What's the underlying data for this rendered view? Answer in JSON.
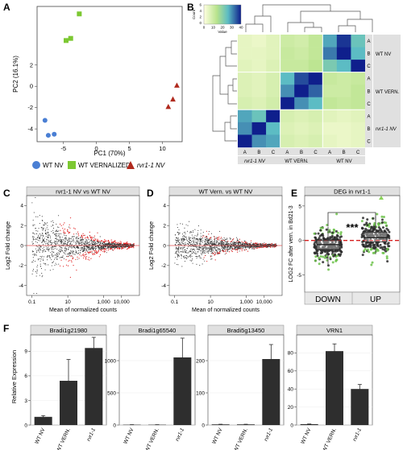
{
  "panels": {
    "A": {
      "label": "A",
      "ylabel": "PC2 (16.1%)",
      "xlabel": "PC1 (70%)",
      "xticks": [
        "-5",
        "0",
        "5",
        "10"
      ],
      "yticks": [
        "2",
        "0",
        "-2",
        "-4"
      ],
      "xlim": [
        -9,
        13
      ],
      "ylim": [
        -5.2,
        7.5
      ],
      "legend": [
        {
          "label": "WT NV",
          "shape": "circle",
          "color": "#4a7fd4"
        },
        {
          "label": "WT VERNALIZED",
          "shape": "square",
          "color": "#7cc832"
        },
        {
          "label": "rvr1-1 NV",
          "shape": "triangle",
          "color": "#b02a1e"
        }
      ]
    },
    "B": {
      "label": "B",
      "colorkey_title": "Count",
      "colorkey_ticks": [
        "0",
        "10",
        "20",
        "30",
        "40"
      ],
      "colorkey_xlabel": "Value",
      "colorkey_yticks": [
        "0",
        "2",
        "4",
        "6"
      ],
      "row_sample_labels": [
        "A",
        "B",
        "C",
        "A",
        "B",
        "C",
        "A",
        "B",
        "C"
      ],
      "row_group_labels": [
        "WT NV",
        "WT VERN.",
        "rvr1-1 NV"
      ],
      "col_sample_labels": [
        "A",
        "B",
        "C",
        "A",
        "B",
        "C",
        "A",
        "B",
        "C"
      ],
      "col_group_labels": [
        "rvr1-1 NV",
        "WT VERN.",
        "WT NV"
      ]
    },
    "C": {
      "label": "C",
      "title": "rvr1-1 NV vs WT NV",
      "ylabel": "Log2 Fold change",
      "xlabel": "Mean of normalized counts",
      "xticks": [
        "0.1",
        "10",
        "1,000",
        "10,000"
      ],
      "yticks": [
        "4",
        "2",
        "0",
        "-2",
        "-4"
      ]
    },
    "D": {
      "label": "D",
      "title": "WT Vern. vs WT NV",
      "ylabel": "Log2 Fold change",
      "xlabel": "Mean of normalized counts",
      "xticks": [
        "0.1",
        "10",
        "1,000",
        "10,000"
      ],
      "yticks": [
        "4",
        "2",
        "0",
        "-2",
        "-4"
      ]
    },
    "E": {
      "label": "E",
      "title": "DEG in rvr1-1",
      "ylabel": "LOG2 FC after vern. in Bd21-3",
      "categories": [
        "DOWN",
        "UP"
      ],
      "significance": "***",
      "yticks": [
        "5",
        "0",
        "-5"
      ]
    },
    "F": {
      "label": "F",
      "ylabel": "Relative Expression"
    }
  },
  "chart_data": [
    {
      "type": "scatter",
      "panel": "A",
      "xlabel": "PC1 (70%)",
      "ylabel": "PC2 (16.1%)",
      "xlim": [
        -9,
        13
      ],
      "ylim": [
        -5.2,
        7.5
      ],
      "series": [
        {
          "name": "WT NV",
          "points": [
            [
              -7.8,
              -3.2
            ],
            [
              -7.3,
              -4.6
            ],
            [
              -6.4,
              -4.5
            ]
          ]
        },
        {
          "name": "WT VERNALIZED",
          "points": [
            [
              -4.6,
              4.3
            ],
            [
              -3.9,
              4.5
            ],
            [
              -2.6,
              6.8
            ]
          ]
        },
        {
          "name": "rvr1-1 NV",
          "points": [
            [
              10.9,
              -1.9
            ],
            [
              11.6,
              -1.2
            ],
            [
              12.2,
              0.1
            ]
          ]
        }
      ]
    },
    {
      "type": "heatmap",
      "panel": "B",
      "rows": [
        "WT NV A",
        "WT NV B",
        "WT NV C",
        "WT VERN. A",
        "WT VERN. B",
        "WT VERN. C",
        "rvr1-1 NV A",
        "rvr1-1 NV B",
        "rvr1-1 NV C"
      ],
      "columns": [
        "rvr1-1 NV A",
        "rvr1-1 NV B",
        "rvr1-1 NV C",
        "WT VERN. A",
        "WT VERN. B",
        "WT VERN. C",
        "WT NV A",
        "WT NV B",
        "WT NV C"
      ],
      "values": [
        [
          5,
          4,
          6,
          10,
          9,
          12,
          28,
          38,
          24
        ],
        [
          5,
          5,
          6,
          11,
          10,
          12,
          32,
          40,
          26
        ],
        [
          6,
          5,
          7,
          11,
          11,
          13,
          22,
          26,
          40
        ],
        [
          7,
          6,
          8,
          26,
          36,
          40,
          11,
          10,
          11
        ],
        [
          7,
          6,
          8,
          30,
          40,
          34,
          10,
          10,
          12
        ],
        [
          8,
          7,
          9,
          40,
          30,
          26,
          12,
          11,
          12
        ],
        [
          28,
          24,
          40,
          8,
          7,
          8,
          6,
          5,
          6
        ],
        [
          30,
          40,
          26,
          7,
          6,
          7,
          4,
          4,
          5
        ],
        [
          40,
          30,
          28,
          8,
          7,
          8,
          5,
          4,
          5
        ]
      ],
      "value_range": [
        0,
        40
      ]
    },
    {
      "type": "scatter",
      "panel": "C",
      "title": "rvr1-1 NV vs WT NV",
      "xscale": "log",
      "xlim": [
        0.05,
        100000
      ],
      "ylim": [
        -5,
        5
      ],
      "description_series": [
        "not significant (black)",
        "significant (red)"
      ],
      "spread_by_log10_mean": [
        [
          -1,
          3.5
        ],
        [
          0,
          3.0
        ],
        [
          1,
          2.0
        ],
        [
          2,
          1.2
        ],
        [
          3,
          0.6
        ],
        [
          4,
          0.3
        ],
        [
          5,
          0.2
        ]
      ]
    },
    {
      "type": "scatter",
      "panel": "D",
      "title": "WT Vern. vs WT NV",
      "xscale": "log",
      "xlim": [
        0.05,
        100000
      ],
      "ylim": [
        -5,
        5
      ],
      "spread_by_log10_mean": [
        [
          -1,
          2.0
        ],
        [
          0,
          1.8
        ],
        [
          1,
          1.2
        ],
        [
          2,
          0.7
        ],
        [
          3,
          0.4
        ],
        [
          4,
          0.2
        ],
        [
          5,
          0.15
        ]
      ]
    },
    {
      "type": "box",
      "panel": "E",
      "categories": [
        "DOWN",
        "UP"
      ],
      "ylim": [
        -7.5,
        6.5
      ],
      "boxes": [
        {
          "category": "DOWN",
          "q1": -1.3,
          "median": -0.6,
          "q3": 0.0,
          "whisker_low": -3.5,
          "whisker_high": 2.0
        },
        {
          "category": "UP",
          "q1": -0.2,
          "median": 0.4,
          "q3": 1.2,
          "whisker_low": -2.0,
          "whisker_high": 3.5
        }
      ],
      "reference_line": 0
    },
    {
      "type": "bar",
      "panel": "F",
      "ylabel": "Relative Expression",
      "subplots": [
        {
          "title": "Bradi1g21980",
          "categories": [
            "WT NV",
            "WT VERN.",
            "rvr1-1"
          ],
          "values": [
            1.0,
            5.4,
            9.4
          ],
          "errors": [
            0.15,
            2.6,
            1.3
          ],
          "ylim": [
            0,
            11
          ],
          "yticks": [
            0,
            3,
            6,
            9
          ]
        },
        {
          "title": "Bradi1g65540",
          "categories": [
            "WT NV",
            "WT VERN.",
            "rvr1-1"
          ],
          "values": [
            5,
            5,
            1050
          ],
          "errors": [
            1,
            1,
            300
          ],
          "ylim": [
            0,
            1400
          ],
          "yticks": [
            0,
            500,
            1000
          ]
        },
        {
          "title": "Bradi5g13450",
          "categories": [
            "WT NV",
            "WT VERN.",
            "rvr1-1"
          ],
          "values": [
            2,
            2,
            205
          ],
          "errors": [
            0.5,
            0.5,
            45
          ],
          "ylim": [
            0,
            280
          ],
          "yticks": [
            0,
            100,
            200
          ]
        },
        {
          "title": "VRN1",
          "categories": [
            "WT NV",
            "WT VERN.",
            "rvr1-1"
          ],
          "values": [
            1,
            82,
            40
          ],
          "errors": [
            0.2,
            8,
            5
          ],
          "ylim": [
            0,
            100
          ],
          "yticks": [
            0,
            20,
            40,
            60,
            80
          ]
        }
      ]
    }
  ]
}
